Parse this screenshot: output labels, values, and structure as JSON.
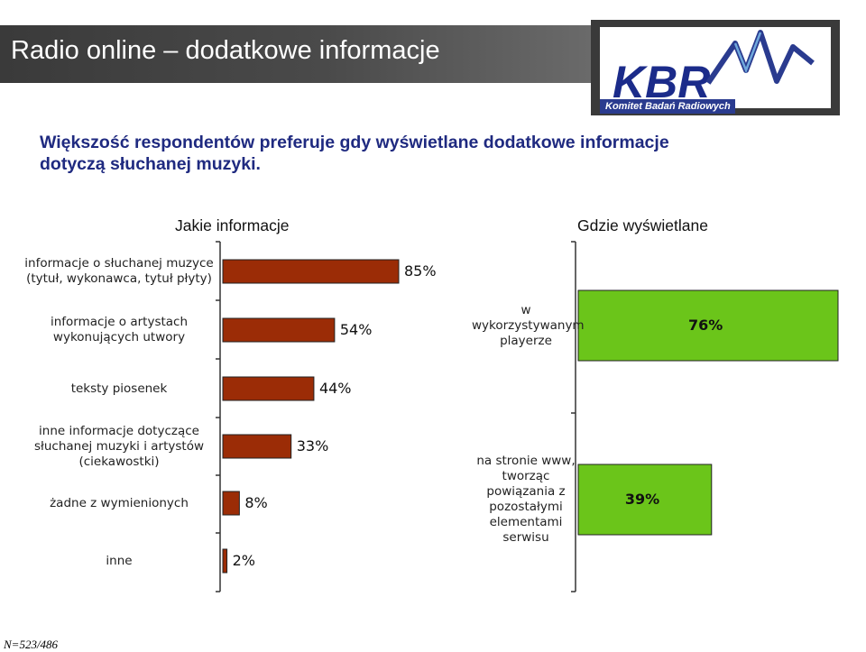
{
  "title": "Radio online – dodatkowe informacje",
  "headline_line1": "Większość respondentów preferuje gdy wyświetlane dodatkowe informacje",
  "headline_line2": "dotyczą słuchanej muzyki.",
  "logo": {
    "text": "KBR",
    "subtitle": "Komitet Badań Radiowych"
  },
  "footnote": "N=523/486",
  "colors": {
    "bar_left": "#9b2c06",
    "bar_right": "#6bc51a",
    "title_bar": "#3f3f3f",
    "headline": "#1f2a80"
  },
  "chart_data": [
    {
      "type": "bar",
      "orientation": "horizontal",
      "title": "Jakie informacje",
      "xlim": [
        0,
        100
      ],
      "categories": [
        [
          "informacje o słuchanej muzyce",
          "(tytuł, wykonawca, tytuł płyty)"
        ],
        [
          "informacje o artystach",
          "wykonujących utwory"
        ],
        [
          "teksty piosenek"
        ],
        [
          "inne informacje dotyczące",
          "słuchanej muzyki i artystów",
          "(ciekawostki)"
        ],
        [
          "żadne z wymienionych"
        ],
        [
          "inne"
        ]
      ],
      "values": [
        85,
        54,
        44,
        33,
        8,
        2
      ],
      "value_labels": [
        "85%",
        "54%",
        "44%",
        "33%",
        "8%",
        "2%"
      ]
    },
    {
      "type": "bar",
      "orientation": "horizontal",
      "title": "Gdzie wyświetlane",
      "xlim": [
        0,
        100
      ],
      "categories": [
        [
          "w",
          "wykorzystywanym",
          "playerze"
        ],
        [
          "na stronie www,",
          "tworząc",
          "powiązania z",
          "pozostałymi",
          "elementami",
          "serwisu"
        ]
      ],
      "values": [
        76,
        39
      ],
      "value_labels": [
        "76%",
        "39%"
      ]
    }
  ]
}
